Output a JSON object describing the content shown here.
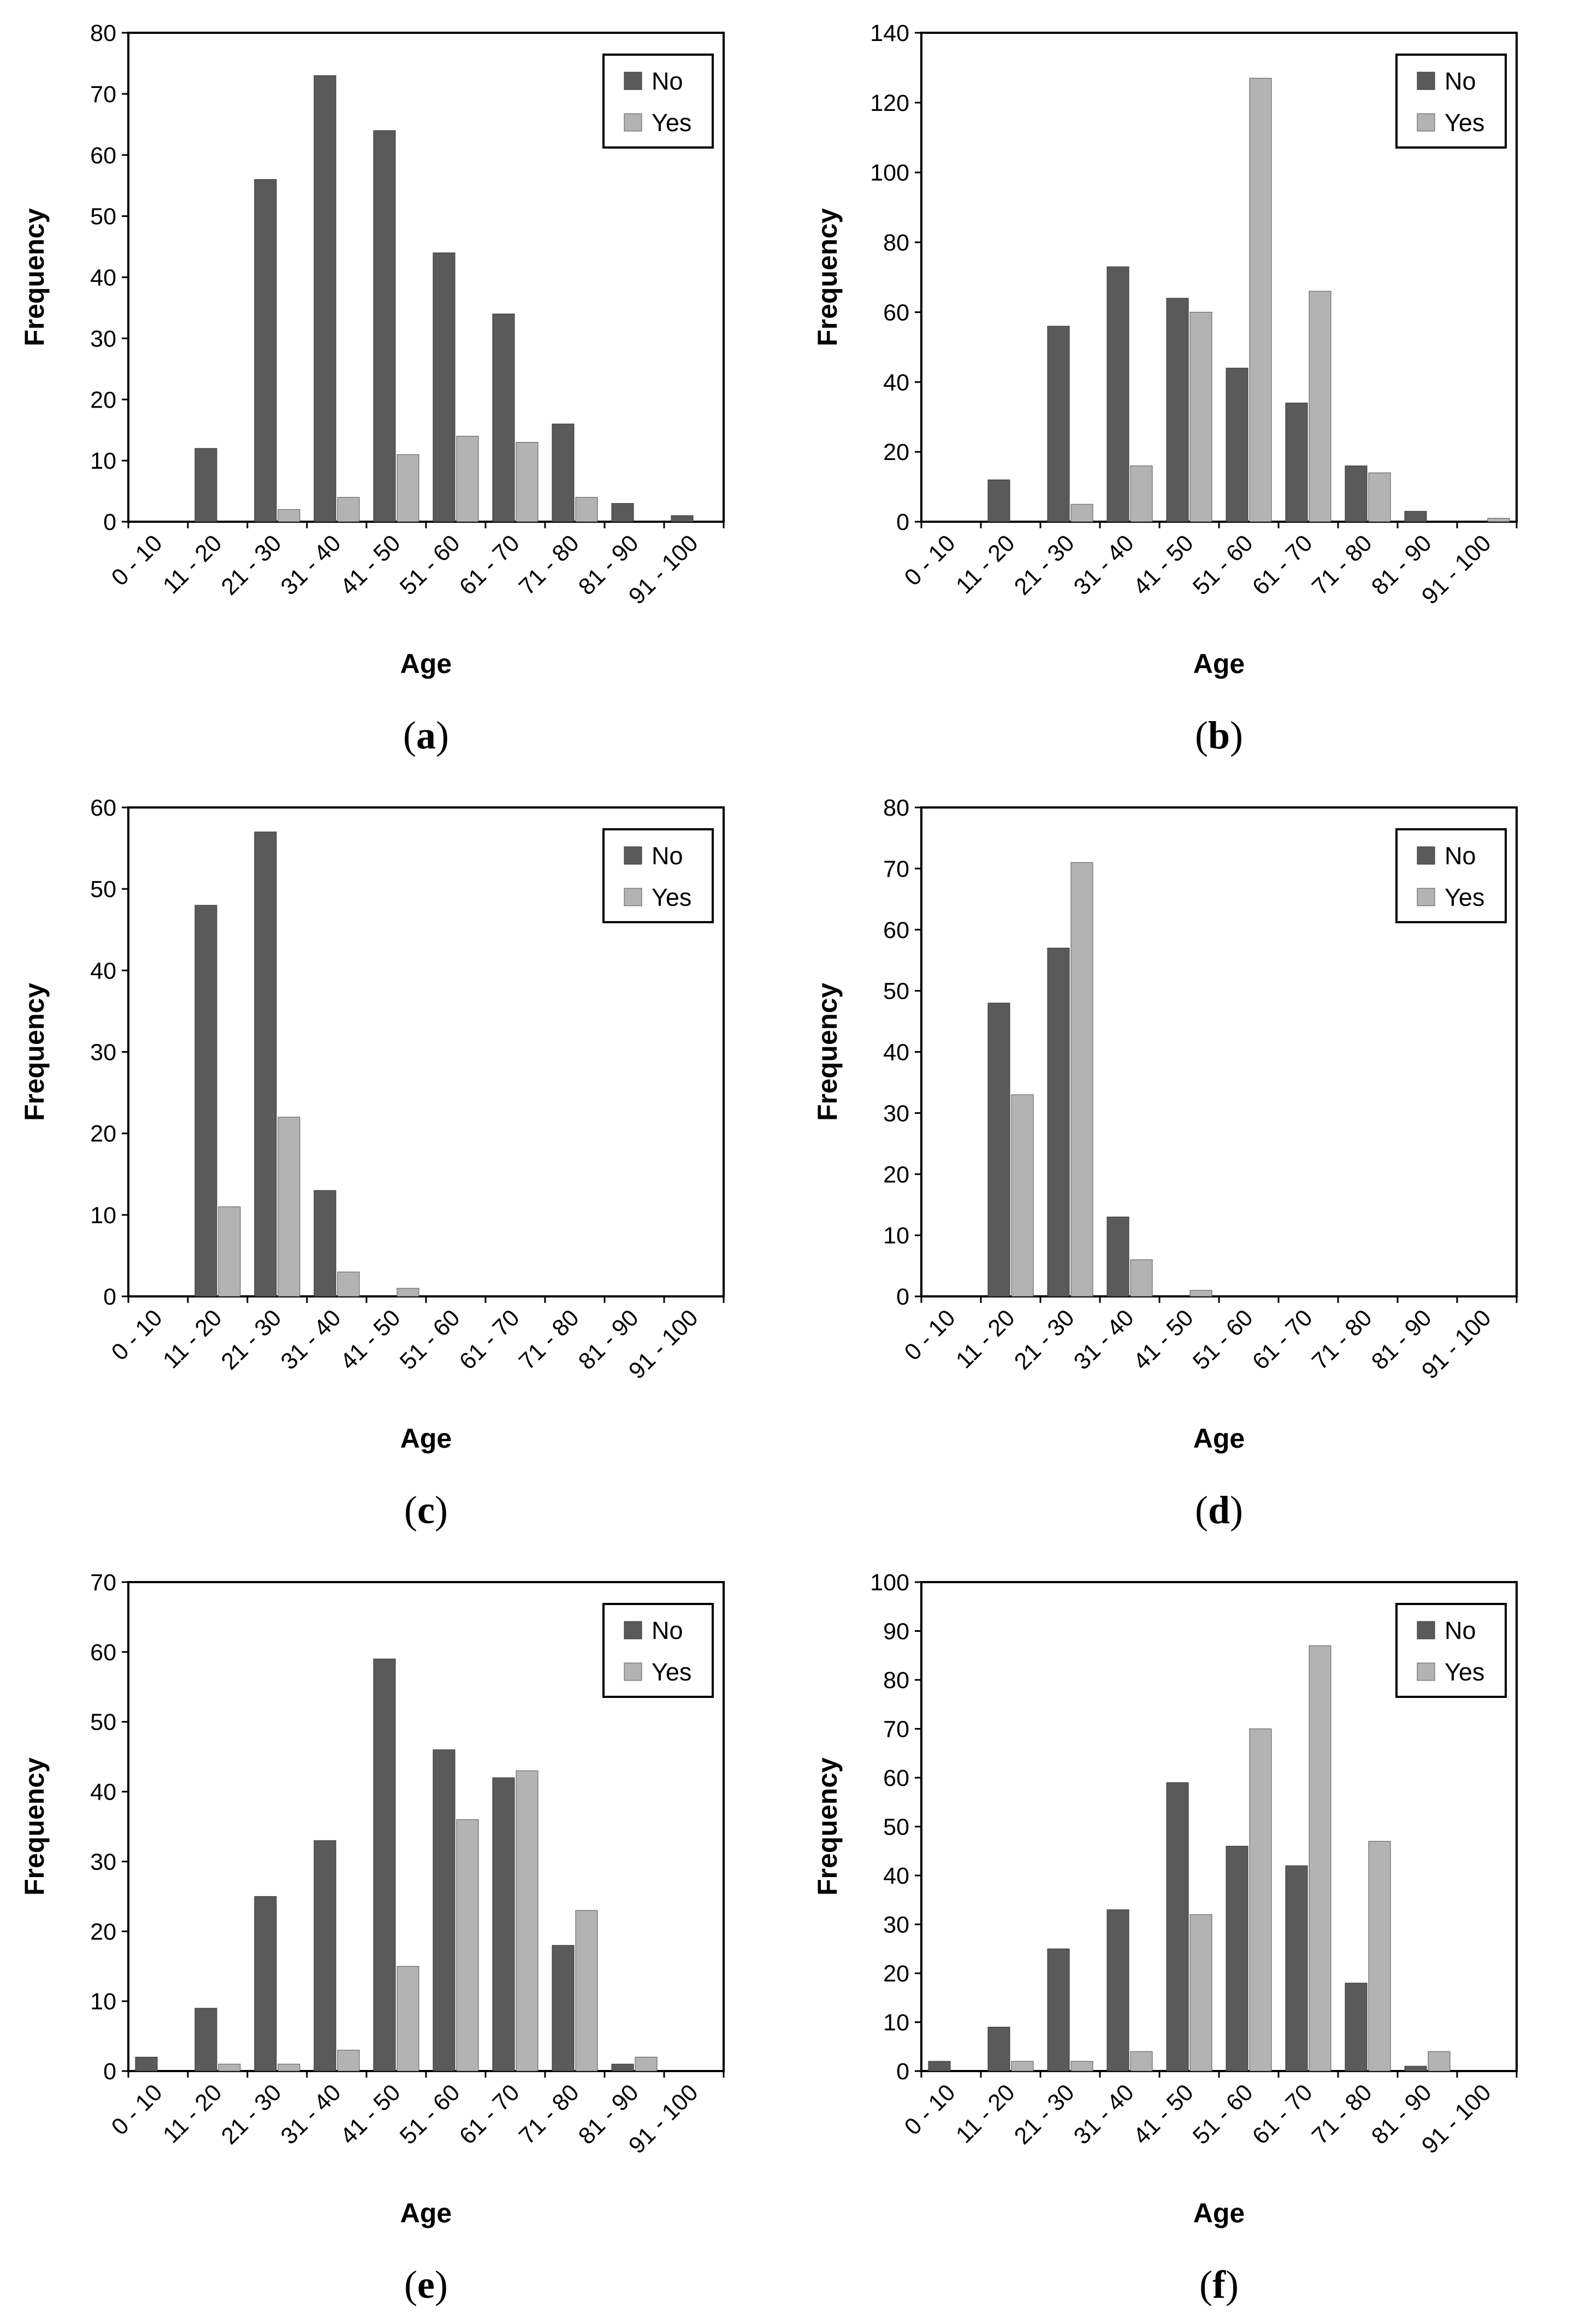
{
  "colors": {
    "no": "#5a5a5a",
    "yes": "#b3b3b3",
    "axis": "#000000",
    "background": "#ffffff"
  },
  "chart_data": [
    {
      "type": "bar",
      "panel": "a",
      "xlabel": "Age",
      "ylabel": "Frequency",
      "ylim": [
        0,
        80
      ],
      "ytick_step": 10,
      "legend": [
        "No",
        "Yes"
      ],
      "legend_position": "top-right",
      "categories": [
        "0 - 10",
        "11 - 20",
        "21 - 30",
        "31 - 40",
        "41 - 50",
        "51 - 60",
        "61 - 70",
        "71 - 80",
        "81 - 90",
        "91 - 100"
      ],
      "series": [
        {
          "name": "No",
          "values": [
            0,
            12,
            56,
            73,
            64,
            44,
            34,
            16,
            3,
            1
          ]
        },
        {
          "name": "Yes",
          "values": [
            0,
            0,
            2,
            4,
            11,
            14,
            13,
            4,
            0,
            0
          ]
        }
      ]
    },
    {
      "type": "bar",
      "panel": "b",
      "xlabel": "Age",
      "ylabel": "Frequency",
      "ylim": [
        0,
        140
      ],
      "ytick_step": 20,
      "legend": [
        "No",
        "Yes"
      ],
      "legend_position": "top-right",
      "categories": [
        "0 - 10",
        "11 - 20",
        "21 - 30",
        "31 - 40",
        "41 - 50",
        "51 - 60",
        "61 - 70",
        "71 - 80",
        "81 - 90",
        "91 - 100"
      ],
      "series": [
        {
          "name": "No",
          "values": [
            0,
            12,
            56,
            73,
            64,
            44,
            34,
            16,
            3,
            0
          ]
        },
        {
          "name": "Yes",
          "values": [
            0,
            0,
            5,
            16,
            60,
            127,
            66,
            14,
            0,
            1
          ]
        }
      ]
    },
    {
      "type": "bar",
      "panel": "c",
      "xlabel": "Age",
      "ylabel": "Frequency",
      "ylim": [
        0,
        60
      ],
      "ytick_step": 10,
      "legend": [
        "No",
        "Yes"
      ],
      "legend_position": "top-right",
      "categories": [
        "0 - 10",
        "11 - 20",
        "21 - 30",
        "31 - 40",
        "41 - 50",
        "51 - 60",
        "61 - 70",
        "71 - 80",
        "81 - 90",
        "91 - 100"
      ],
      "series": [
        {
          "name": "No",
          "values": [
            0,
            48,
            57,
            13,
            0,
            0,
            0,
            0,
            0,
            0
          ]
        },
        {
          "name": "Yes",
          "values": [
            0,
            11,
            22,
            3,
            1,
            0,
            0,
            0,
            0,
            0
          ]
        }
      ]
    },
    {
      "type": "bar",
      "panel": "d",
      "xlabel": "Age",
      "ylabel": "Frequency",
      "ylim": [
        0,
        80
      ],
      "ytick_step": 10,
      "legend": [
        "No",
        "Yes"
      ],
      "legend_position": "top-right",
      "categories": [
        "0 - 10",
        "11 - 20",
        "21 - 30",
        "31 - 40",
        "41 - 50",
        "51 - 60",
        "61 - 70",
        "71 - 80",
        "81 - 90",
        "91 - 100"
      ],
      "series": [
        {
          "name": "No",
          "values": [
            0,
            48,
            57,
            13,
            0,
            0,
            0,
            0,
            0,
            0
          ]
        },
        {
          "name": "Yes",
          "values": [
            0,
            33,
            71,
            6,
            1,
            0,
            0,
            0,
            0,
            0
          ]
        }
      ]
    },
    {
      "type": "bar",
      "panel": "e",
      "xlabel": "Age",
      "ylabel": "Frequency",
      "ylim": [
        0,
        70
      ],
      "ytick_step": 10,
      "legend": [
        "No",
        "Yes"
      ],
      "legend_position": "top-right",
      "categories": [
        "0 - 10",
        "11 - 20",
        "21 - 30",
        "31 - 40",
        "41 - 50",
        "51 - 60",
        "61 - 70",
        "71 - 80",
        "81 - 90",
        "91 - 100"
      ],
      "series": [
        {
          "name": "No",
          "values": [
            2,
            9,
            25,
            33,
            59,
            46,
            42,
            18,
            1,
            0
          ]
        },
        {
          "name": "Yes",
          "values": [
            0,
            1,
            1,
            3,
            15,
            36,
            43,
            23,
            2,
            0
          ]
        }
      ]
    },
    {
      "type": "bar",
      "panel": "f",
      "xlabel": "Age",
      "ylabel": "Frequency",
      "ylim": [
        0,
        100
      ],
      "ytick_step": 10,
      "legend": [
        "No",
        "Yes"
      ],
      "legend_position": "top-right",
      "categories": [
        "0 - 10",
        "11 - 20",
        "21 - 30",
        "31 - 40",
        "41 - 50",
        "51 - 60",
        "61 - 70",
        "71 - 80",
        "81 - 90",
        "91 - 100"
      ],
      "series": [
        {
          "name": "No",
          "values": [
            2,
            9,
            25,
            33,
            59,
            46,
            42,
            18,
            1,
            0
          ]
        },
        {
          "name": "Yes",
          "values": [
            0,
            2,
            2,
            4,
            32,
            70,
            87,
            47,
            4,
            0
          ]
        }
      ]
    }
  ]
}
